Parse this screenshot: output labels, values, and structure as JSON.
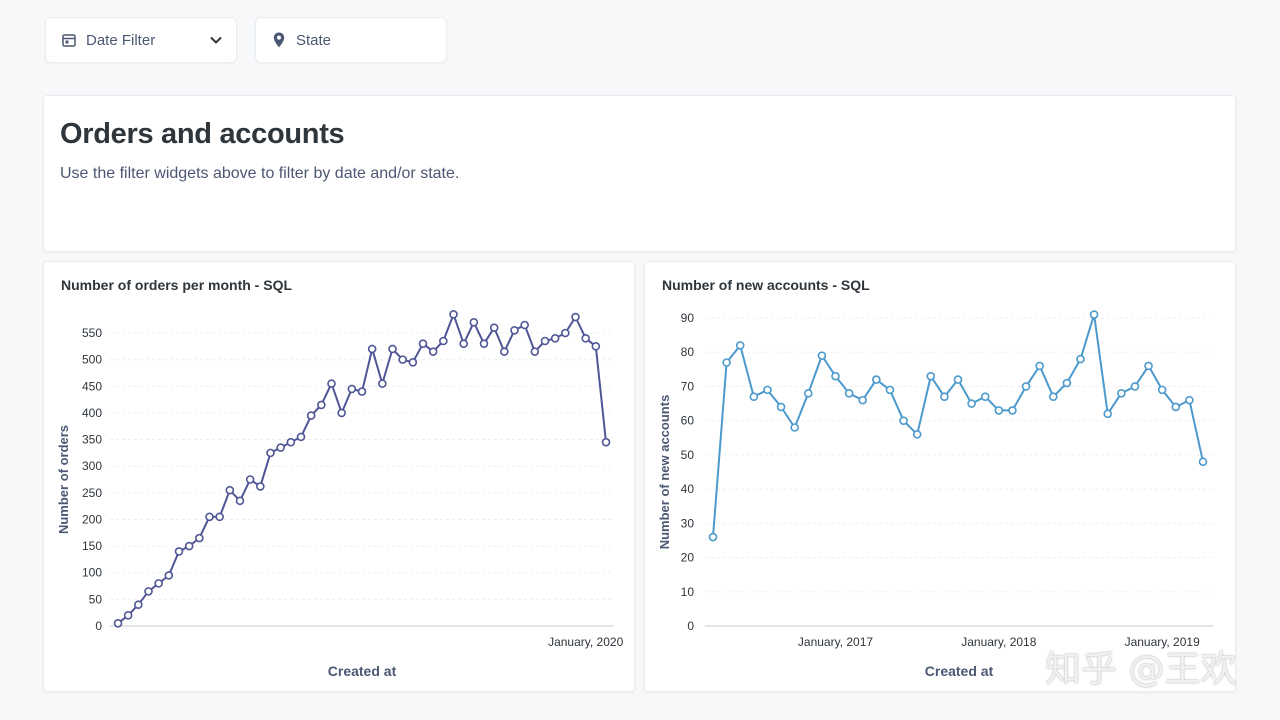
{
  "filters": {
    "date": {
      "label": "Date Filter",
      "icon": "calendar-icon"
    },
    "state": {
      "label": "State",
      "icon": "location-pin-icon"
    }
  },
  "text_card": {
    "title": "Orders and accounts",
    "description": "Use the filter widgets above to filter by date and/or state."
  },
  "watermark": "知乎 @王欢",
  "colors": {
    "orders_line": "#4f5695",
    "accounts_line": "#4c99cc",
    "text": "#2e353b",
    "muted": "#4c5773"
  },
  "chart_data": [
    {
      "type": "line",
      "title": "Number of orders per month - SQL",
      "xlabel": "Created at",
      "ylabel": "Number of orders",
      "ylim": [
        0,
        550
      ],
      "y_ticks": [
        0,
        50,
        100,
        150,
        200,
        250,
        300,
        350,
        400,
        450,
        500,
        550
      ],
      "x_tick_labels": [
        {
          "label": "January, 2020",
          "index": 46
        }
      ],
      "grid": true,
      "series": [
        {
          "values": [
            5,
            20,
            40,
            65,
            80,
            95,
            140,
            150,
            165,
            205,
            205,
            255,
            235,
            275,
            262,
            325,
            335,
            345,
            355,
            395,
            415,
            455,
            400,
            445,
            440,
            520,
            455,
            520,
            500,
            495,
            530,
            515,
            535,
            585,
            530,
            570,
            530,
            560,
            515,
            555,
            565,
            515,
            535,
            540,
            550,
            580,
            540,
            525,
            345
          ]
        }
      ]
    },
    {
      "type": "line",
      "title": "Number of new accounts - SQL",
      "xlabel": "Created at",
      "ylabel": "Number of new accounts",
      "ylim": [
        0,
        90
      ],
      "y_ticks": [
        0,
        10,
        20,
        30,
        40,
        50,
        60,
        70,
        80,
        90
      ],
      "x_tick_labels": [
        {
          "label": "January, 2017",
          "index": 9
        },
        {
          "label": "January, 2018",
          "index": 21
        },
        {
          "label": "January, 2019",
          "index": 33
        }
      ],
      "grid": true,
      "series": [
        {
          "values": [
            26,
            77,
            82,
            67,
            69,
            64,
            58,
            68,
            79,
            73,
            68,
            66,
            72,
            69,
            60,
            56,
            73,
            67,
            72,
            65,
            67,
            63,
            63,
            70,
            76,
            67,
            71,
            78,
            91,
            62,
            68,
            70,
            76,
            69,
            64,
            66,
            48
          ]
        }
      ]
    }
  ]
}
